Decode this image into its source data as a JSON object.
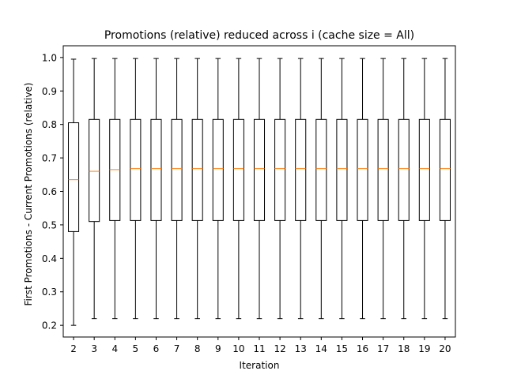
{
  "chart_data": {
    "type": "box",
    "title": "Promotions (relative) reduced across i (cache size = All)",
    "xlabel": "Iteration",
    "ylabel": "First Promotions - Current Promotions (relative)",
    "categories": [
      "2",
      "3",
      "4",
      "5",
      "6",
      "7",
      "8",
      "9",
      "10",
      "11",
      "12",
      "13",
      "14",
      "15",
      "16",
      "17",
      "18",
      "19",
      "20"
    ],
    "ylim": [
      0.165,
      1.035
    ],
    "yticks": [
      0.2,
      0.3,
      0.4,
      0.5,
      0.6,
      0.7,
      0.8,
      0.9,
      1.0
    ],
    "ytick_labels": [
      "0.2",
      "0.3",
      "0.4",
      "0.5",
      "0.6",
      "0.7",
      "0.8",
      "0.9",
      "1.0"
    ],
    "boxes": [
      {
        "whisker_low": 0.2,
        "q1": 0.48,
        "median": 0.635,
        "q3": 0.805,
        "whisker_high": 0.995
      },
      {
        "whisker_low": 0.22,
        "q1": 0.51,
        "median": 0.66,
        "q3": 0.815,
        "whisker_high": 0.997
      },
      {
        "whisker_low": 0.22,
        "q1": 0.513,
        "median": 0.665,
        "q3": 0.815,
        "whisker_high": 0.997
      },
      {
        "whisker_low": 0.22,
        "q1": 0.513,
        "median": 0.668,
        "q3": 0.815,
        "whisker_high": 0.997
      },
      {
        "whisker_low": 0.22,
        "q1": 0.513,
        "median": 0.668,
        "q3": 0.815,
        "whisker_high": 0.997
      },
      {
        "whisker_low": 0.22,
        "q1": 0.513,
        "median": 0.668,
        "q3": 0.815,
        "whisker_high": 0.997
      },
      {
        "whisker_low": 0.22,
        "q1": 0.513,
        "median": 0.668,
        "q3": 0.815,
        "whisker_high": 0.997
      },
      {
        "whisker_low": 0.22,
        "q1": 0.513,
        "median": 0.668,
        "q3": 0.815,
        "whisker_high": 0.997
      },
      {
        "whisker_low": 0.22,
        "q1": 0.513,
        "median": 0.668,
        "q3": 0.815,
        "whisker_high": 0.997
      },
      {
        "whisker_low": 0.22,
        "q1": 0.513,
        "median": 0.668,
        "q3": 0.815,
        "whisker_high": 0.997
      },
      {
        "whisker_low": 0.22,
        "q1": 0.513,
        "median": 0.668,
        "q3": 0.815,
        "whisker_high": 0.997
      },
      {
        "whisker_low": 0.22,
        "q1": 0.513,
        "median": 0.668,
        "q3": 0.815,
        "whisker_high": 0.997
      },
      {
        "whisker_low": 0.22,
        "q1": 0.513,
        "median": 0.668,
        "q3": 0.815,
        "whisker_high": 0.997
      },
      {
        "whisker_low": 0.22,
        "q1": 0.513,
        "median": 0.668,
        "q3": 0.815,
        "whisker_high": 0.997
      },
      {
        "whisker_low": 0.22,
        "q1": 0.513,
        "median": 0.668,
        "q3": 0.815,
        "whisker_high": 0.997
      },
      {
        "whisker_low": 0.22,
        "q1": 0.513,
        "median": 0.668,
        "q3": 0.815,
        "whisker_high": 0.997
      },
      {
        "whisker_low": 0.22,
        "q1": 0.513,
        "median": 0.668,
        "q3": 0.815,
        "whisker_high": 0.997
      },
      {
        "whisker_low": 0.22,
        "q1": 0.513,
        "median": 0.668,
        "q3": 0.815,
        "whisker_high": 0.997
      },
      {
        "whisker_low": 0.22,
        "q1": 0.513,
        "median": 0.668,
        "q3": 0.815,
        "whisker_high": 0.997
      }
    ],
    "grid": false,
    "colors": {
      "box": "#000000",
      "median": "#ff7f0e",
      "whisker": "#000000"
    }
  }
}
